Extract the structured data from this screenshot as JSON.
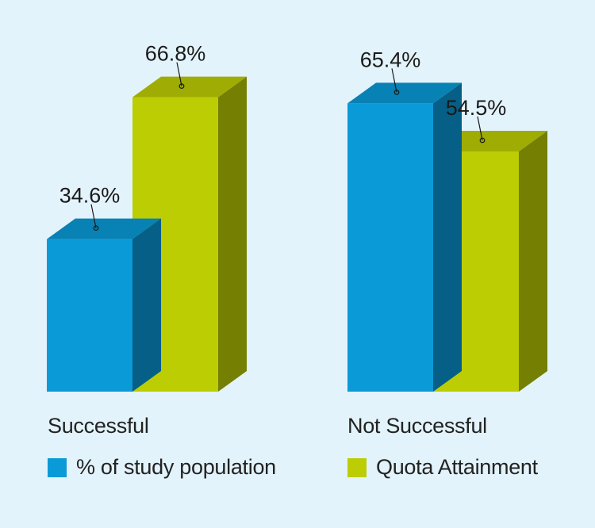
{
  "chart_data": {
    "type": "bar",
    "categories": [
      "Successful",
      "Not Successful"
    ],
    "series": [
      {
        "name": "% of study population",
        "values": [
          34.6,
          65.4
        ],
        "labels": [
          "34.6%",
          "65.4%"
        ],
        "color": "#0a9ad8"
      },
      {
        "name": "Quota Attainment",
        "values": [
          66.8,
          54.5
        ],
        "labels": [
          "66.8%",
          "54.5%"
        ],
        "color": "#bccd03"
      }
    ],
    "ylim": [
      0,
      100
    ],
    "grid": false,
    "legend_position": "bottom",
    "style": "3d-bars"
  }
}
